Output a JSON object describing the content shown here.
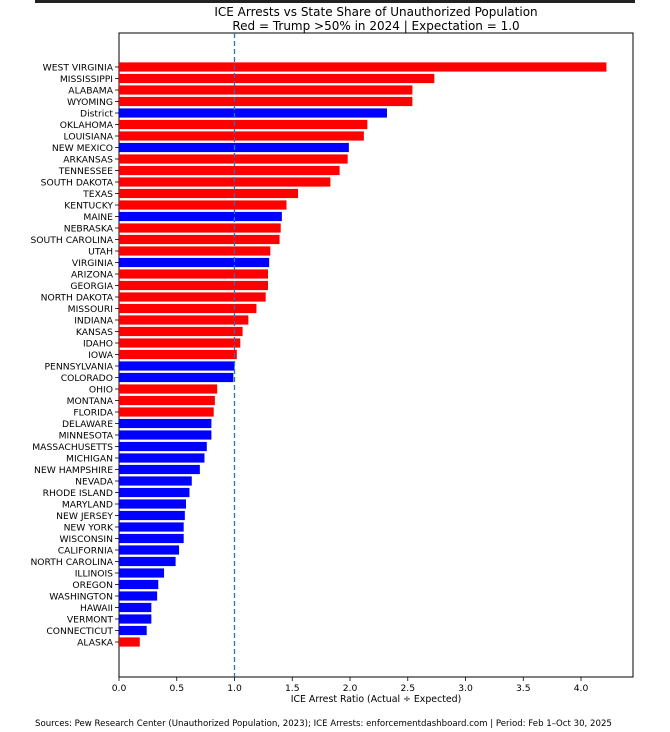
{
  "chart_data": {
    "type": "bar",
    "orientation": "horizontal",
    "title": "ICE Arrests vs State Share of Unauthorized Population",
    "subtitle": "Red = Trump >50% in 2024 | Expectation = 1.0",
    "xlabel": "ICE Arrest Ratio (Actual ÷ Expected)",
    "ylabel": "",
    "xlim": [
      0,
      4.45
    ],
    "xticks": [
      "0.0",
      "0.5",
      "1.0",
      "1.5",
      "2.0",
      "2.5",
      "3.0",
      "3.5",
      "4.0"
    ],
    "reference_line": {
      "x": 1.0,
      "style": "dashed",
      "color": "#1f77b4"
    },
    "grid": false,
    "colors": {
      "red": "#ff0000",
      "blue": "#0000ff"
    },
    "categories": [
      "WEST VIRGINIA",
      "MISSISSIPPI",
      "ALABAMA",
      "WYOMING",
      "District",
      "OKLAHOMA",
      "LOUISIANA",
      "NEW MEXICO",
      "ARKANSAS",
      "TENNESSEE",
      "SOUTH DAKOTA",
      "TEXAS",
      "KENTUCKY",
      "MAINE",
      "NEBRASKA",
      "SOUTH CAROLINA",
      "UTAH",
      "VIRGINIA",
      "ARIZONA",
      "GEORGIA",
      "NORTH DAKOTA",
      "MISSOURI",
      "INDIANA",
      "KANSAS",
      "IDAHO",
      "IOWA",
      "PENNSYLVANIA",
      "COLORADO",
      "OHIO",
      "MONTANA",
      "FLORIDA",
      "DELAWARE",
      "MINNESOTA",
      "MASSACHUSETTS",
      "MICHIGAN",
      "NEW HAMPSHIRE",
      "NEVADA",
      "RHODE ISLAND",
      "MARYLAND",
      "NEW JERSEY",
      "NEW YORK",
      "WISCONSIN",
      "CALIFORNIA",
      "NORTH CAROLINA",
      "ILLINOIS",
      "OREGON",
      "WASHINGTON",
      "HAWAII",
      "VERMONT",
      "CONNECTICUT",
      "ALASKA"
    ],
    "values": [
      4.22,
      2.73,
      2.54,
      2.54,
      2.32,
      2.15,
      2.12,
      1.99,
      1.98,
      1.91,
      1.83,
      1.55,
      1.45,
      1.41,
      1.4,
      1.39,
      1.31,
      1.3,
      1.29,
      1.29,
      1.27,
      1.19,
      1.12,
      1.07,
      1.05,
      1.02,
      1.0,
      0.99,
      0.85,
      0.83,
      0.82,
      0.8,
      0.8,
      0.76,
      0.74,
      0.7,
      0.63,
      0.61,
      0.58,
      0.57,
      0.56,
      0.56,
      0.52,
      0.49,
      0.39,
      0.34,
      0.33,
      0.28,
      0.28,
      0.24,
      0.18
    ],
    "bar_colors": [
      "red",
      "red",
      "red",
      "red",
      "blue",
      "red",
      "red",
      "blue",
      "red",
      "red",
      "red",
      "red",
      "red",
      "blue",
      "red",
      "red",
      "red",
      "blue",
      "red",
      "red",
      "red",
      "red",
      "red",
      "red",
      "red",
      "red",
      "blue",
      "blue",
      "red",
      "red",
      "red",
      "blue",
      "blue",
      "blue",
      "blue",
      "blue",
      "blue",
      "blue",
      "blue",
      "blue",
      "blue",
      "blue",
      "blue",
      "blue",
      "blue",
      "blue",
      "blue",
      "blue",
      "blue",
      "blue",
      "red"
    ]
  },
  "source_note": "Sources: Pew Research Center (Unauthorized Population, 2023); ICE Arrests: enforcementdashboard.com | Period: Feb 1–Oct 30, 2025"
}
